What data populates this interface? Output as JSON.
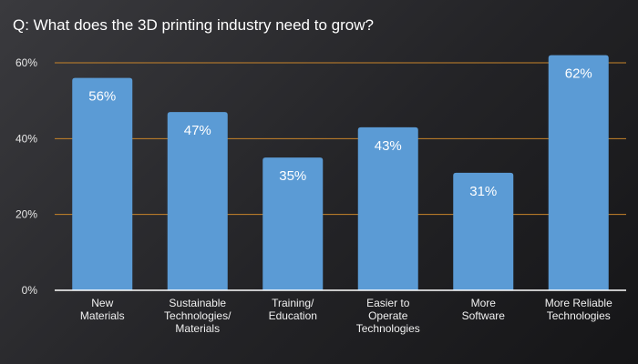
{
  "chart_data": {
    "type": "bar",
    "title": "Q: What does the 3D printing industry need to grow?",
    "categories": [
      [
        "New",
        "Materials"
      ],
      [
        "Sustainable",
        "Technologies/",
        "Materials"
      ],
      [
        "Training/",
        "Education"
      ],
      [
        "Easier to",
        "Operate",
        "Technologies"
      ],
      [
        "More",
        "Software"
      ],
      [
        "More Reliable",
        "Technologies"
      ]
    ],
    "values": [
      56,
      47,
      35,
      43,
      31,
      62
    ],
    "value_labels": [
      "56%",
      "47%",
      "35%",
      "43%",
      "31%",
      "62%"
    ],
    "yticks": [
      0,
      20,
      40,
      60
    ],
    "ytick_labels": [
      "0%",
      "20%",
      "40%",
      "60%"
    ],
    "ylim": [
      0,
      60
    ],
    "grid": true,
    "colors": {
      "bar": "#5b9bd5",
      "grid": "#c8842a",
      "axis": "#ffffff"
    }
  }
}
